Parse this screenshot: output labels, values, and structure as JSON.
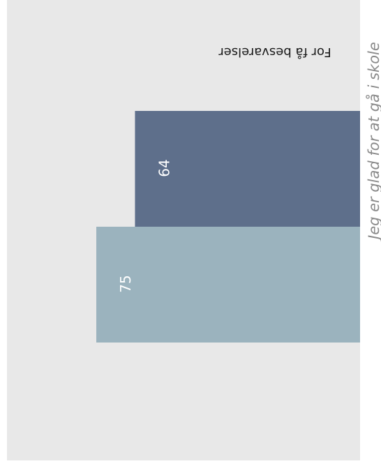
{
  "chart_data": {
    "type": "bar",
    "orientation": "horizontal-rotated",
    "title": "Jeg er glad for at gå i skole",
    "note": "For få besvarelser",
    "xlim": [
      0,
      100
    ],
    "series": [
      {
        "value": 64,
        "color": "#5e6f8b"
      },
      {
        "value": 75,
        "color": "#9bb3be"
      }
    ]
  }
}
